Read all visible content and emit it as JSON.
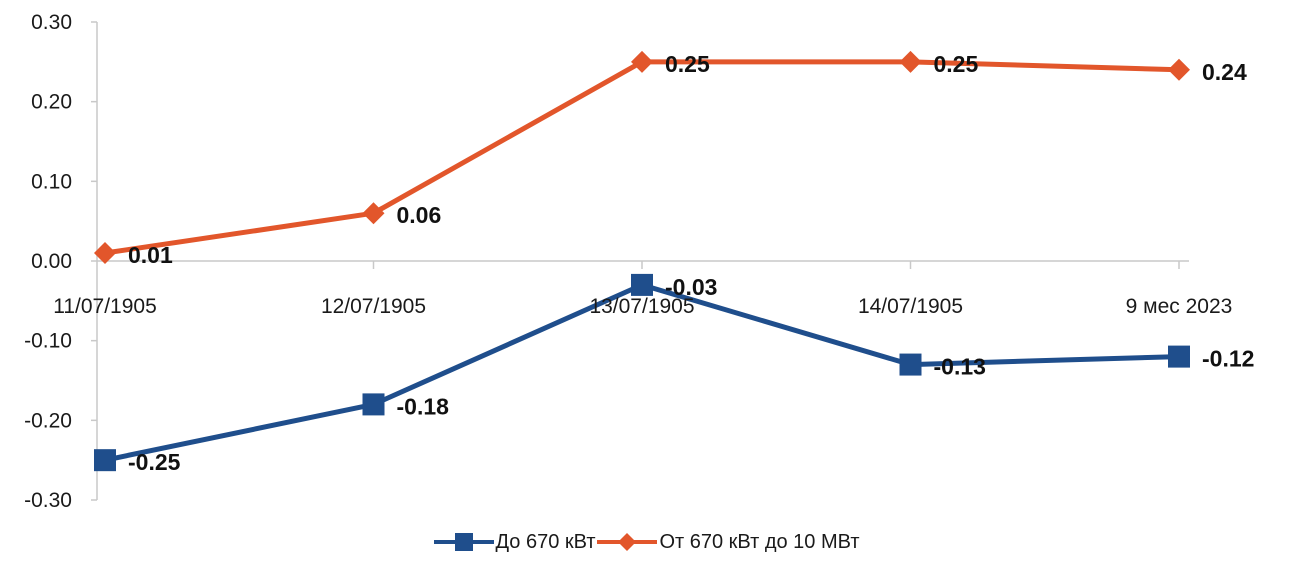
{
  "chart_data": {
    "type": "line",
    "categories": [
      "11/07/1905",
      "12/07/1905",
      "13/07/1905",
      "14/07/1905",
      "9 мес 2023"
    ],
    "ylim": [
      -0.3,
      0.3
    ],
    "yticks": [
      "0.30",
      "0.20",
      "0.10",
      "0.00",
      "-0.10",
      "-0.20",
      "-0.30"
    ],
    "grid": false,
    "legend_position": "bottom",
    "series": [
      {
        "name": "До 670 кВт",
        "color": "#1f4e8c",
        "marker": "square",
        "values": [
          -0.25,
          -0.18,
          -0.03,
          -0.13,
          -0.12
        ],
        "labels": [
          "-0.25",
          "-0.18",
          "-0.03",
          "-0.13",
          "-0.12"
        ]
      },
      {
        "name": "От 670 кВт до 10 МВт",
        "color": "#e2562b",
        "marker": "diamond",
        "values": [
          0.01,
          0.06,
          0.25,
          0.25,
          0.24
        ],
        "labels": [
          "0.01",
          "0.06",
          "0.25",
          "0.25",
          "0.24"
        ]
      }
    ]
  }
}
